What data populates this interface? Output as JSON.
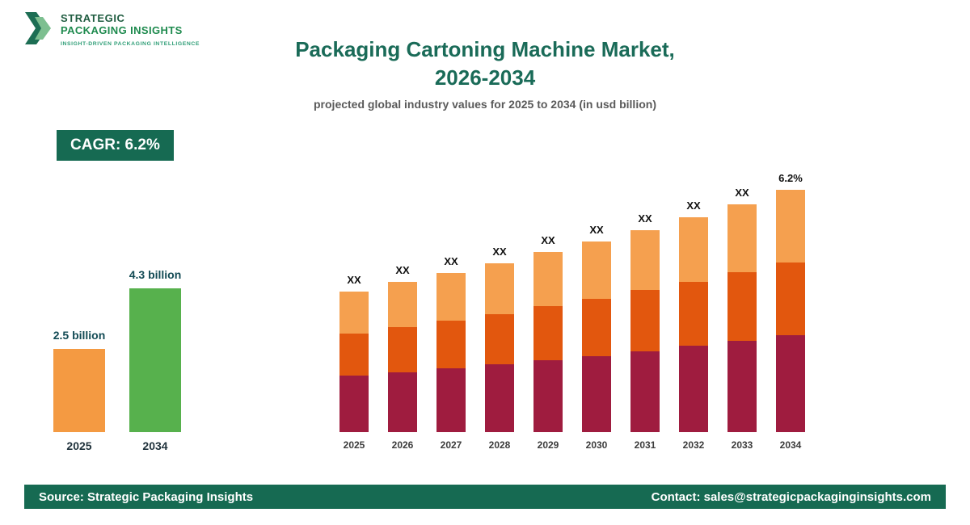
{
  "logo": {
    "line1": "STRATEGIC",
    "line2": "PACKAGING INSIGHTS",
    "tagline": "INSIGHT-DRIVEN PACKAGING INTELLIGENCE"
  },
  "header": {
    "title_line1": "Packaging Cartoning Machine Market,",
    "title_line2": "2026-2034",
    "subtitle": "projected global industry values for 2025 to 2034 (in usd billion)"
  },
  "cagr_badge": "CAGR: 6.2%",
  "colors": {
    "brand_green_dark": "#166a52",
    "title_green": "#1a6b58",
    "bar_maroon": "#9f1c3f",
    "bar_dark_orange": "#e2570e",
    "bar_light_orange": "#f5a04f",
    "summary_orange": "#f49a42",
    "summary_green": "#57b14d"
  },
  "chart_data": [
    {
      "type": "bar",
      "name": "summary-growth",
      "categories": [
        "2025",
        "2034"
      ],
      "values": [
        2.5,
        4.3
      ],
      "value_labels": [
        "2.5 billion",
        "4.3 billion"
      ],
      "colors": [
        "#f49a42",
        "#57b14d"
      ],
      "unit": "usd billion",
      "grid": false,
      "legend": "none"
    },
    {
      "type": "bar",
      "name": "stacked-forecast",
      "stacked": true,
      "title": "Packaging Cartoning Machine Market, 2026-2034",
      "subtitle": "projected global industry values for 2025 to 2034 (in usd billion)",
      "unit": "usd billion",
      "categories": [
        "2025",
        "2026",
        "2027",
        "2028",
        "2029",
        "2030",
        "2031",
        "2032",
        "2033",
        "2034"
      ],
      "bar_labels": [
        "XX",
        "XX",
        "XX",
        "XX",
        "XX",
        "XX",
        "XX",
        "XX",
        "XX",
        "6.2%"
      ],
      "totals_estimated": [
        2.5,
        2.66,
        2.82,
        3.0,
        3.19,
        3.38,
        3.59,
        3.82,
        4.05,
        4.3
      ],
      "series": [
        {
          "name": "bottom",
          "color": "#9f1c3f",
          "values": [
            1.0,
            1.06,
            1.13,
            1.2,
            1.28,
            1.35,
            1.44,
            1.53,
            1.62,
            1.72
          ]
        },
        {
          "name": "middle",
          "color": "#e2570e",
          "values": [
            0.75,
            0.8,
            0.85,
            0.9,
            0.96,
            1.01,
            1.08,
            1.14,
            1.22,
            1.29
          ]
        },
        {
          "name": "top",
          "color": "#f5a04f",
          "values": [
            0.75,
            0.8,
            0.84,
            0.9,
            0.95,
            1.02,
            1.07,
            1.15,
            1.21,
            1.29
          ]
        }
      ],
      "grid": false,
      "legend": "none"
    }
  ],
  "footer": {
    "source": "Source: Strategic Packaging Insights",
    "contact": "Contact: sales@strategicpackaginginsights.com"
  }
}
